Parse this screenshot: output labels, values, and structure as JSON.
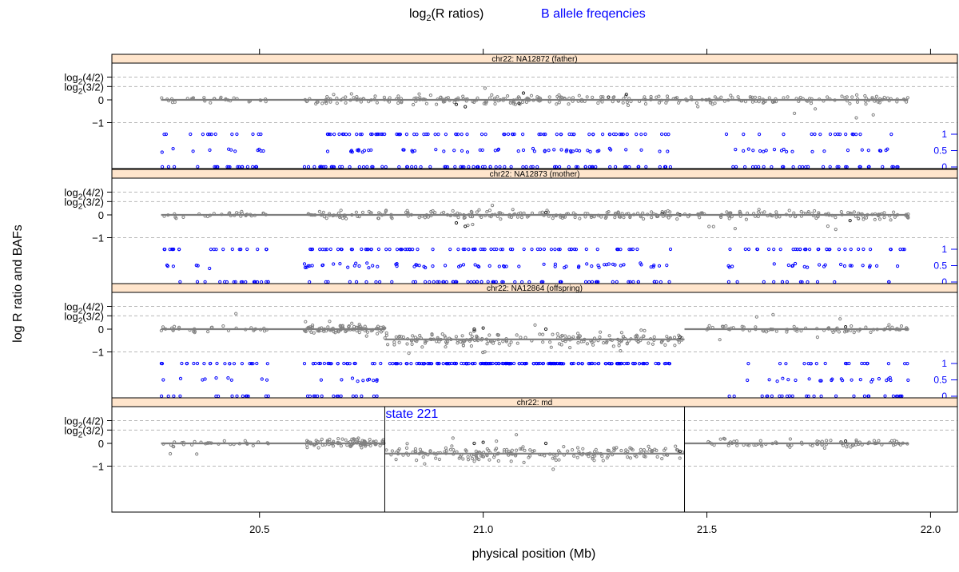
{
  "colors": {
    "strip_bg": "#ffe5cc",
    "lrr_points": "#808080",
    "lrr_dark_points": "#202020",
    "lrr_line": "#7f7f7f",
    "baf": "#0000ff",
    "grid": "#b8b8b8",
    "state_text": "#0000ff"
  },
  "chart_data": {
    "type": "scatter",
    "legend": {
      "lrr_label_base": "log",
      "lrr_label_sub": "2",
      "lrr_label_rest": "(R ratios)",
      "baf_label": "B allele freqencies"
    },
    "xlabel": "physical position (Mb)",
    "ylabel": "log R ratio and BAFs",
    "xlim": [
      20.17,
      22.06
    ],
    "x_ticks": [
      {
        "value": 20.5,
        "label": "20.5"
      },
      {
        "value": 21.0,
        "label": "21.0"
      },
      {
        "value": 21.5,
        "label": "21.5"
      },
      {
        "value": 22.0,
        "label": "22.0"
      }
    ],
    "lrr_ticks": [
      {
        "value": 1.0,
        "base": "log",
        "sub": "2",
        "arg": "(4/2)"
      },
      {
        "value": 0.585,
        "base": "log",
        "sub": "2",
        "arg": "(3/2)"
      },
      {
        "value": 0,
        "label": "0"
      },
      {
        "value": -1,
        "label": "−1"
      }
    ],
    "baf_ticks": [
      {
        "value": 1,
        "label": "1"
      },
      {
        "value": 0.5,
        "label": "0.5"
      },
      {
        "value": 0,
        "label": "0"
      }
    ],
    "lrr_grid": [
      1.0,
      0.585,
      -1
    ],
    "panels": [
      {
        "strip": "chr22: NA12872 (father)",
        "show_baf": true,
        "lrr_segments": [
          {
            "x0": 20.28,
            "x1": 21.95,
            "y": 0
          }
        ],
        "lrr_regions": [
          {
            "x0": 20.28,
            "x1": 20.52,
            "n": 30,
            "mean": 0.0,
            "sd": 0.09
          },
          {
            "x0": 20.6,
            "x1": 21.95,
            "n": 300,
            "mean": 0.0,
            "sd": 0.13
          }
        ],
        "dark_lrr": [
          [
            20.94,
            -0.2
          ],
          [
            20.96,
            -0.3
          ],
          [
            21.08,
            -0.15
          ],
          [
            21.28,
            0.12
          ],
          [
            21.32,
            0.24
          ],
          [
            21.09,
            0.3
          ]
        ],
        "baf_regions": [
          {
            "x0": 20.28,
            "x1": 20.52,
            "n": 44
          },
          {
            "x0": 20.6,
            "x1": 21.42,
            "n": 210
          },
          {
            "x0": 21.54,
            "x1": 21.95,
            "n": 70
          }
        ]
      },
      {
        "strip": "chr22: NA12873 (mother)",
        "show_baf": true,
        "lrr_segments": [
          {
            "x0": 20.28,
            "x1": 21.95,
            "y": 0
          }
        ],
        "lrr_regions": [
          {
            "x0": 20.28,
            "x1": 20.52,
            "n": 30,
            "mean": 0.0,
            "sd": 0.09
          },
          {
            "x0": 20.6,
            "x1": 21.95,
            "n": 300,
            "mean": 0.0,
            "sd": 0.13
          }
        ],
        "dark_lrr": [
          [
            20.94,
            -0.35
          ],
          [
            20.96,
            -0.5
          ],
          [
            21.14,
            0.1
          ],
          [
            21.4,
            0.05
          ],
          [
            21.44,
            0.0
          ],
          [
            21.82,
            -0.25
          ]
        ],
        "baf_regions": [
          {
            "x0": 20.28,
            "x1": 20.52,
            "n": 44
          },
          {
            "x0": 20.6,
            "x1": 21.42,
            "n": 210
          },
          {
            "x0": 21.54,
            "x1": 21.95,
            "n": 70
          }
        ]
      },
      {
        "strip": "chr22: NA12864 (offspring)",
        "show_baf": true,
        "lrr_segments": [
          {
            "x0": 20.28,
            "x1": 20.78,
            "y": 0
          },
          {
            "x0": 20.78,
            "x1": 21.45,
            "y": -0.45
          },
          {
            "x0": 21.45,
            "x1": 21.95,
            "y": 0
          }
        ],
        "lrr_regions": [
          {
            "x0": 20.28,
            "x1": 20.52,
            "n": 30,
            "mean": 0.0,
            "sd": 0.09
          },
          {
            "x0": 20.6,
            "x1": 20.78,
            "n": 90,
            "mean": 0.0,
            "sd": 0.13
          },
          {
            "x0": 20.78,
            "x1": 21.45,
            "n": 200,
            "mean": -0.45,
            "sd": 0.2
          },
          {
            "x0": 21.5,
            "x1": 21.95,
            "n": 80,
            "mean": 0.0,
            "sd": 0.12
          }
        ],
        "dark_lrr": [
          [
            20.98,
            0.0
          ],
          [
            21.0,
            0.05
          ],
          [
            21.14,
            0.0
          ],
          [
            21.44,
            -0.35
          ],
          [
            21.81,
            0.1
          ]
        ],
        "baf_regions": [
          {
            "x0": 20.28,
            "x1": 20.52,
            "n": 44
          },
          {
            "x0": 20.6,
            "x1": 21.42,
            "n": 210
          },
          {
            "x0": 21.54,
            "x1": 21.95,
            "n": 70
          }
        ],
        "baf_no_het": [
          20.78,
          21.45
        ]
      },
      {
        "strip": "chr22: md",
        "show_baf": false,
        "lrr_segments": [
          {
            "x0": 20.28,
            "x1": 20.78,
            "y": 0
          },
          {
            "x0": 20.78,
            "x1": 21.45,
            "y": -0.45
          },
          {
            "x0": 21.45,
            "x1": 21.95,
            "y": 0
          }
        ],
        "lrr_regions": [
          {
            "x0": 20.28,
            "x1": 20.52,
            "n": 30,
            "mean": 0.0,
            "sd": 0.09
          },
          {
            "x0": 20.6,
            "x1": 20.78,
            "n": 90,
            "mean": 0.0,
            "sd": 0.13
          },
          {
            "x0": 20.78,
            "x1": 21.45,
            "n": 200,
            "mean": -0.45,
            "sd": 0.2
          },
          {
            "x0": 21.5,
            "x1": 21.95,
            "n": 80,
            "mean": 0.0,
            "sd": 0.12
          }
        ],
        "dark_lrr": [
          [
            20.98,
            0.0
          ],
          [
            21.0,
            0.05
          ],
          [
            21.14,
            0.0
          ],
          [
            21.44,
            -0.35
          ],
          [
            21.81,
            0.1
          ]
        ],
        "state_lines": [
          20.78,
          21.45
        ],
        "state_label": "state 221"
      }
    ]
  }
}
